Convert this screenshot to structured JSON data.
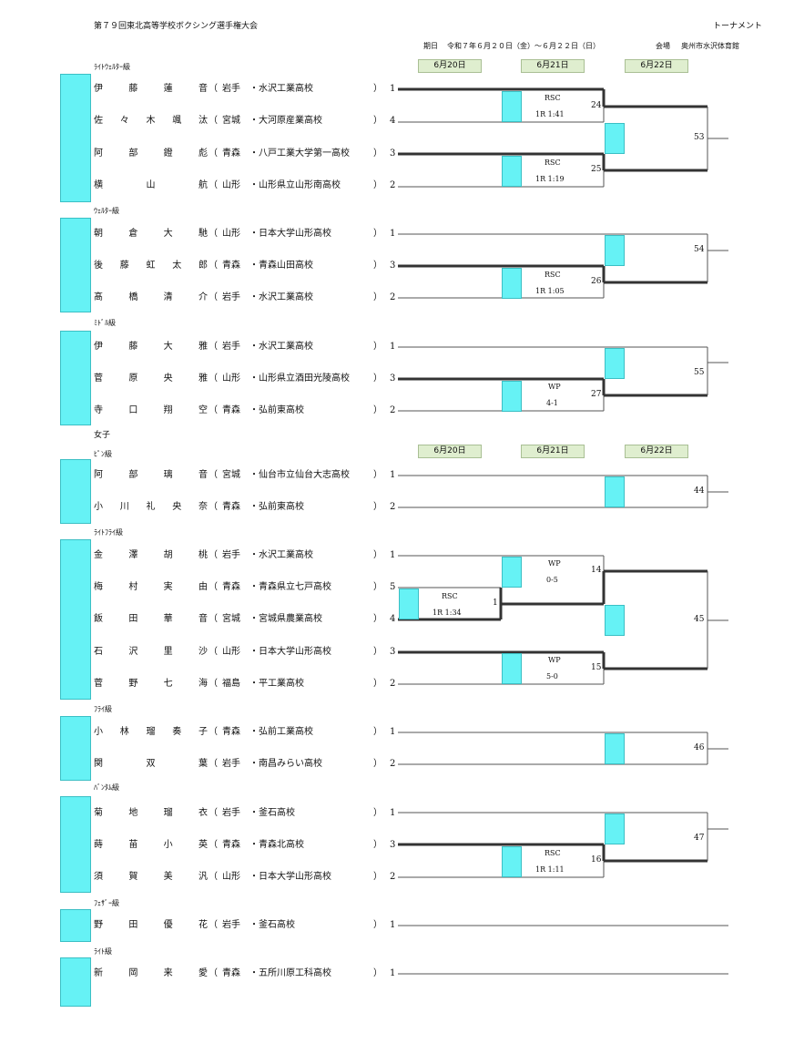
{
  "header": {
    "title": "第７９回東北高等学校ボクシング選手権大会",
    "right_label": "トーナメント",
    "dates_label": "期日",
    "dates_value": "令和７年６月２０日（金）～６月２２日（日）",
    "venue_label": "会場",
    "venue_value": "奥州市水沢体育館"
  },
  "date_columns": [
    "6月20日",
    "6月21日",
    "6月22日"
  ],
  "sections": {
    "light_welter": "ﾗｲﾄｳｪﾙﾀｰ級",
    "welter": "ｳｪﾙﾀｰ級",
    "middle": "ﾐﾄﾞﾙ級",
    "women": "女子",
    "pin": "ﾋﾟﾝ級",
    "light_fly": "ﾗｲﾄﾌﾗｲ級",
    "fly": "ﾌﾗｲ級",
    "bantam": "ﾊﾞﾝﾀﾑ級",
    "feather": "ﾌｪｻﾞｰ級",
    "light": "ﾗｲﾄ級"
  },
  "players": [
    {
      "name": [
        "伊",
        "藤",
        "蓮",
        "音"
      ],
      "pref": "岩手",
      "school": "・水沢工業高校",
      "seed": "1"
    },
    {
      "name": [
        "佐",
        "々",
        "木",
        "颯",
        "汰"
      ],
      "pref": "宮城",
      "school": "・大河原産業高校",
      "seed": "4"
    },
    {
      "name": [
        "阿",
        "部",
        "鐙",
        "彪"
      ],
      "pref": "青森",
      "school": "・八戸工業大学第一高校",
      "seed": "3"
    },
    {
      "name": [
        "横",
        "山",
        "航"
      ],
      "pref": "山形",
      "school": "・山形県立山形南高校",
      "seed": "2"
    },
    {
      "name": [
        "朝",
        "倉",
        "大",
        "馳"
      ],
      "pref": "山形",
      "school": "・日本大学山形高校",
      "seed": "1"
    },
    {
      "name": [
        "後",
        "藤",
        "虹",
        "太",
        "郎"
      ],
      "pref": "青森",
      "school": "・青森山田高校",
      "seed": "3"
    },
    {
      "name": [
        "髙",
        "橋",
        "清",
        "介"
      ],
      "pref": "岩手",
      "school": "・水沢工業高校",
      "seed": "2"
    },
    {
      "name": [
        "伊",
        "藤",
        "大",
        "雅"
      ],
      "pref": "岩手",
      "school": "・水沢工業高校",
      "seed": "1"
    },
    {
      "name": [
        "菅",
        "原",
        "央",
        "雅"
      ],
      "pref": "山形",
      "school": "・山形県立酒田光陵高校",
      "seed": "3"
    },
    {
      "name": [
        "寺",
        "口",
        "翔",
        "空"
      ],
      "pref": "青森",
      "school": "・弘前東高校",
      "seed": "2"
    },
    {
      "name": [
        "阿",
        "部",
        "璃",
        "音"
      ],
      "pref": "宮城",
      "school": "・仙台市立仙台大志高校",
      "seed": "1"
    },
    {
      "name": [
        "小",
        "川",
        "礼",
        "央",
        "奈"
      ],
      "pref": "青森",
      "school": "・弘前東高校",
      "seed": "2"
    },
    {
      "name": [
        "金",
        "澤",
        "胡",
        "桃"
      ],
      "pref": "岩手",
      "school": "・水沢工業高校",
      "seed": "1"
    },
    {
      "name": [
        "梅",
        "村",
        "実",
        "由"
      ],
      "pref": "青森",
      "school": "・青森県立七戸高校",
      "seed": "5"
    },
    {
      "name": [
        "飯",
        "田",
        "華",
        "音"
      ],
      "pref": "宮城",
      "school": "・宮城県農業高校",
      "seed": "4"
    },
    {
      "name": [
        "石",
        "沢",
        "里",
        "沙"
      ],
      "pref": "山形",
      "school": "・日本大学山形高校",
      "seed": "3"
    },
    {
      "name": [
        "菅",
        "野",
        "七",
        "海"
      ],
      "pref": "福島",
      "school": "・平工業高校",
      "seed": "2"
    },
    {
      "name": [
        "小",
        "林",
        "瑠",
        "奏",
        "子"
      ],
      "pref": "青森",
      "school": "・弘前工業高校",
      "seed": "1"
    },
    {
      "name": [
        "関",
        "双",
        "葉"
      ],
      "pref": "岩手",
      "school": "・南昌みらい高校",
      "seed": "2"
    },
    {
      "name": [
        "菊",
        "地",
        "瑠",
        "衣"
      ],
      "pref": "岩手",
      "school": "・釜石高校",
      "seed": "1"
    },
    {
      "name": [
        "蒔",
        "苗",
        "小",
        "英"
      ],
      "pref": "青森",
      "school": "・青森北高校",
      "seed": "3"
    },
    {
      "name": [
        "須",
        "賀",
        "美",
        "汎"
      ],
      "pref": "山形",
      "school": "・日本大学山形高校",
      "seed": "2"
    },
    {
      "name": [
        "野",
        "田",
        "優",
        "花"
      ],
      "pref": "岩手",
      "school": "・釜石高校",
      "seed": "1"
    },
    {
      "name": [
        "新",
        "岡",
        "来",
        "愛"
      ],
      "pref": "青森",
      "school": "・五所川原工科高校",
      "seed": "1"
    }
  ],
  "results": {
    "lw_sf1": {
      "method": "RSC",
      "detail": "1R 1:41"
    },
    "lw_sf2": {
      "method": "RSC",
      "detail": "1R 1:19"
    },
    "w_sf": {
      "method": "RSC",
      "detail": "1R 1:05"
    },
    "m_sf": {
      "method": "WP",
      "detail": "4-1"
    },
    "lf_prelim": {
      "method": "RSC",
      "detail": "1R 1:34"
    },
    "lf_sf1": {
      "method": "WP",
      "detail": "0-5"
    },
    "lf_sf2": {
      "method": "WP",
      "detail": "5-0"
    },
    "b_sf": {
      "method": "RSC",
      "detail": "1R 1:11"
    }
  },
  "bout_numbers": {
    "lw_sf1": "24",
    "lw_sf2": "25",
    "lw_final": "53",
    "w_sf": "26",
    "w_final": "54",
    "m_sf": "27",
    "m_final": "55",
    "pin_final": "44",
    "lf_prelim": "1",
    "lf_sf1": "14",
    "lf_sf2": "15",
    "lf_final": "45",
    "fly_final": "46",
    "b_sf": "16",
    "b_final": "47"
  },
  "colors": {
    "player_box": "#66f2f5",
    "date_box": "#dfeecf",
    "line": "#333333"
  }
}
